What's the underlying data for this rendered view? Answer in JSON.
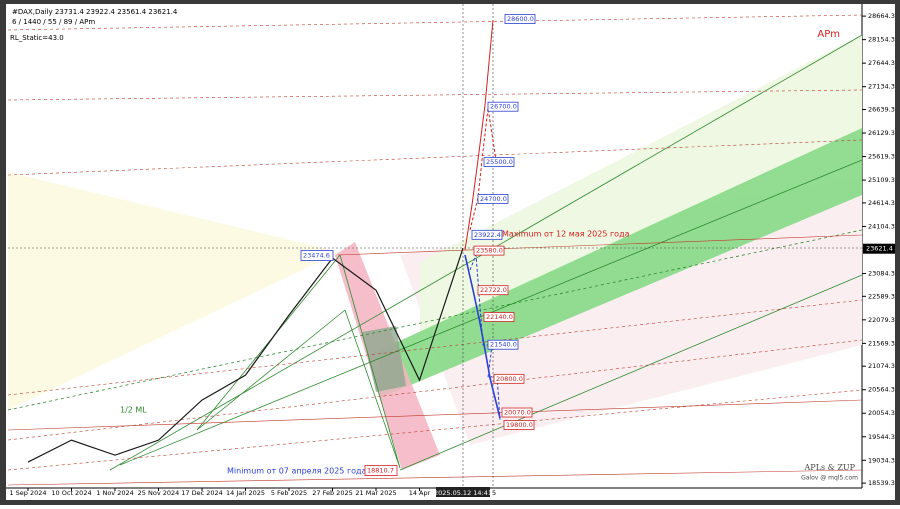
{
  "chart_data": {
    "type": "line",
    "header": {
      "symbol": "#DAX,Daily  23731.4 23922.4 23561.4 23621.4",
      "params": "6 / 1440 / 55 / 89 / APm",
      "static": "RL_Static=43.0"
    },
    "indicator_name": "APm",
    "credits": {
      "line1": "APLs & ZUP",
      "line2": "Galov @ mql5.com"
    },
    "categories": [
      "1 Sep 2024",
      "10 Oct 2024",
      "1 Nov 2024",
      "25 Nov 2024",
      "17 Dec 2024",
      "14 Jan 2025",
      "5 Feb 2025",
      "27 Feb 2025",
      "21 Mar 2025",
      "14 Apr",
      "2025.05.12 14:41"
    ],
    "x_axis_tail": "5",
    "series": [
      {
        "color": "#1a1a1a",
        "values": [
          18995,
          19471,
          19146,
          19471,
          20339,
          20880,
          22181,
          23417,
          22723,
          20772,
          23634
        ]
      }
    ],
    "ylim": [
      18390,
      28840
    ],
    "yticks": [
      18539.3,
      19034.3,
      19544.3,
      20054.3,
      20564.3,
      21074.3,
      21569.3,
      22079.3,
      22589.3,
      23084.3,
      24104.3,
      24614.3,
      25109.3,
      25619.3,
      26129.3,
      26639.3,
      27134.3,
      27644.3,
      28154.3,
      28664.3
    ],
    "current_price": 23621.4,
    "levels": [
      {
        "value": 28600,
        "label": "28600.0",
        "color": "#2b3fd6"
      },
      {
        "value": 26700,
        "label": "26700.0",
        "color": "#2b3fd6"
      },
      {
        "value": 25500,
        "label": "25500.0",
        "color": "#2b3fd6"
      },
      {
        "value": 24700,
        "label": "24700.0",
        "color": "#2b3fd6"
      },
      {
        "value": 23922.4,
        "label": "23922.4",
        "color": "#2b3fd6"
      },
      {
        "value": 23580,
        "label": "23580.0",
        "color": "#d42020"
      },
      {
        "value": 22722,
        "label": "22722.0",
        "color": "#d42020"
      },
      {
        "value": 22140,
        "label": "22140.0",
        "color": "#d42020"
      },
      {
        "value": 21540,
        "label": "21540.0",
        "color": "#2b3fd6"
      },
      {
        "value": 20800,
        "label": "20800.0",
        "color": "#d42020"
      },
      {
        "value": 20070,
        "label": "20070.0",
        "color": "#d42020"
      },
      {
        "value": 19800,
        "label": "19800.0",
        "color": "#d42020"
      }
    ],
    "high_point": 23474.6,
    "low_point": 18810.7,
    "annotations": {
      "maximum": "Maximum от 12 мая 2025 года",
      "minimum": "Minimum от 07 апреля 2025 года",
      "median": "1/2 ML"
    }
  }
}
